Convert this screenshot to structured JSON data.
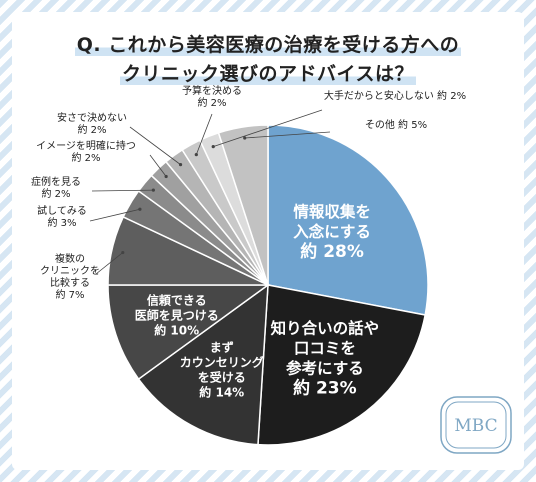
{
  "title": {
    "line1": "Q. これから美容医療の治療を受ける方への",
    "line2": "クリニック選びのアドバイスは？"
  },
  "logo": {
    "text": "MBC",
    "color": "#7fa7c4"
  },
  "chart_data": {
    "type": "pie",
    "title": "Q. これから美容医療の治療を受ける方へのクリニック選びのアドバイスは？",
    "unit": "%",
    "slices": [
      {
        "label": "情報収集を入念にする",
        "lines": [
          "情報収集を",
          "入念にする"
        ],
        "value_text": "約 28%",
        "value": 28,
        "color": "#6fa3cf"
      },
      {
        "label": "知り合いの話や口コミを参考にする",
        "lines": [
          "知り合いの話や",
          "口コミを",
          "参考にする"
        ],
        "value_text": "約 23%",
        "value": 23,
        "color": "#1d1d1d"
      },
      {
        "label": "まずカウンセリングを受ける",
        "lines": [
          "まず",
          "カウンセリング",
          "を受ける"
        ],
        "value_text": "約 14%",
        "value": 14,
        "color": "#333333"
      },
      {
        "label": "信頼できる医師を見つける",
        "lines": [
          "信頼できる",
          "医師を見つける"
        ],
        "value_text": "約 10%",
        "value": 10,
        "color": "#474747"
      },
      {
        "label": "複数のクリニックを比較する",
        "lines": [
          "複数の",
          "クリニックを",
          "比較する"
        ],
        "value_text": "約 7%",
        "value": 7,
        "color": "#5e5e5e"
      },
      {
        "label": "試してみる",
        "lines": [
          "試してみる"
        ],
        "value_text": "約 3%",
        "value": 3,
        "color": "#757575"
      },
      {
        "label": "症例を見る",
        "lines": [
          "症例を見る"
        ],
        "value_text": "約 2%",
        "value": 2,
        "color": "#8b8b8b"
      },
      {
        "label": "イメージを明確に持つ",
        "lines": [
          "イメージを明確に持つ"
        ],
        "value_text": "約 2%",
        "value": 2,
        "color": "#a0a0a0"
      },
      {
        "label": "安さで決めない",
        "lines": [
          "安さで決めない"
        ],
        "value_text": "約 2%",
        "value": 2,
        "color": "#b5b5b5"
      },
      {
        "label": "予算を決める",
        "lines": [
          "予算を決める"
        ],
        "value_text": "約 2%",
        "value": 2,
        "color": "#c9c9c9"
      },
      {
        "label": "大手だからと安心しない",
        "lines": [
          "大手だからと安心しない"
        ],
        "value_text": "約 2%",
        "value": 2,
        "color": "#dcdcdc"
      },
      {
        "label": "その他",
        "lines": [
          "その他"
        ],
        "value_text": "約 5%",
        "value": 5,
        "color": "#c2c2c2"
      }
    ],
    "start_angle_deg": 0,
    "direction": "clockwise"
  }
}
